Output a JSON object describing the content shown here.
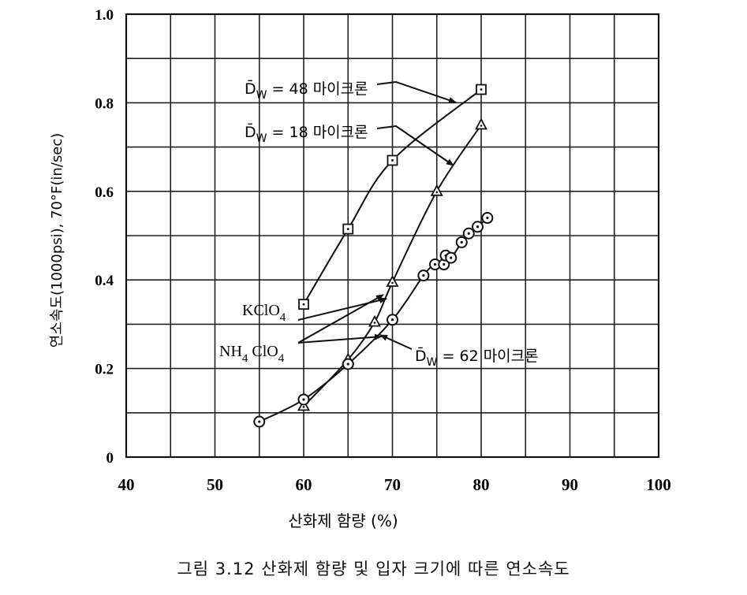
{
  "caption": "그림 3.12  산화제 함량 및 입자 크기에 따른 연소속도",
  "chart_data": {
    "type": "line",
    "xlabel": "산화제 함량 (%)",
    "ylabel": "연소속도(1000psi), 70°F(in/sec)",
    "xlim": [
      40,
      100
    ],
    "ylim": [
      0,
      1.0
    ],
    "x_ticks": [
      40,
      50,
      60,
      70,
      80,
      90,
      100
    ],
    "y_tick_labels": [
      {
        "value": 0,
        "label": "0"
      },
      {
        "value": 0.2,
        "label": "0.2"
      },
      {
        "value": 0.4,
        "label": "0.4"
      },
      {
        "value": 0.6,
        "label": "0.6"
      },
      {
        "value": 0.8,
        "label": "0.8"
      },
      {
        "value": 1.0,
        "label": "1.0"
      }
    ],
    "grid": true,
    "grid_x_step": 5,
    "grid_y_step": 0.1,
    "series": [
      {
        "marker": "square",
        "label_main": "D̄",
        "label_sub": "W",
        "label_rest": " = 48 마이크론",
        "points": [
          [
            60,
            0.345
          ],
          [
            65,
            0.515
          ],
          [
            70,
            0.67
          ],
          [
            80,
            0.83
          ]
        ]
      },
      {
        "marker": "triangle",
        "label_main": "D̄",
        "label_sub": "W",
        "label_rest": " = 18 마이크론",
        "points": [
          [
            60,
            0.115
          ],
          [
            65,
            0.22
          ],
          [
            68,
            0.305
          ],
          [
            70,
            0.395
          ],
          [
            75,
            0.6
          ],
          [
            80,
            0.75
          ]
        ]
      },
      {
        "marker": "circle-dot",
        "label_main": "D̄",
        "label_sub": "W",
        "label_rest": " = 62 마이크론",
        "points": [
          [
            55,
            0.08
          ],
          [
            60,
            0.13
          ],
          [
            65,
            0.21
          ],
          [
            70,
            0.31
          ],
          [
            73.5,
            0.41
          ],
          [
            74.8,
            0.435
          ],
          [
            75.8,
            0.435
          ],
          [
            76,
            0.455
          ],
          [
            76.6,
            0.45
          ],
          [
            77.8,
            0.485
          ],
          [
            78.6,
            0.505
          ],
          [
            79.6,
            0.52
          ],
          [
            80.7,
            0.54
          ]
        ]
      }
    ],
    "annotations": [
      {
        "name": "kclo4",
        "main": "KClO",
        "sub": "4",
        "rest": ""
      },
      {
        "name": "nh4clo4",
        "main": "NH",
        "sub": "4",
        "rest": " ClO",
        "sub2": "4"
      }
    ]
  }
}
